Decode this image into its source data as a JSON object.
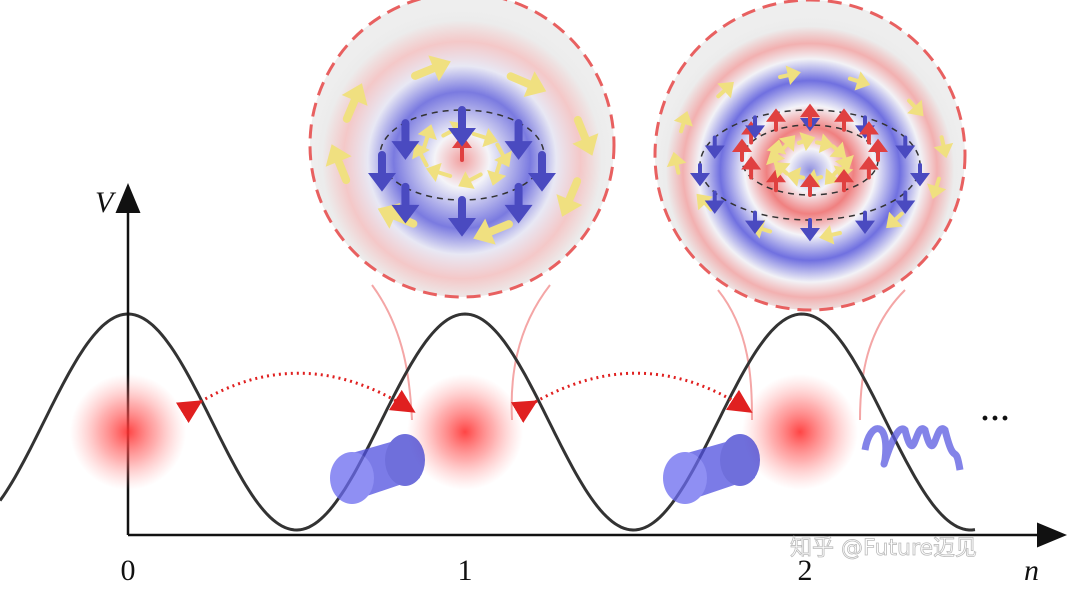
{
  "axis": {
    "y_label": "V",
    "x_label": "n",
    "ticks": [
      "0",
      "1",
      "2"
    ],
    "ellipsis": "···"
  },
  "watermark": "知乎 @Future迈见"
}
